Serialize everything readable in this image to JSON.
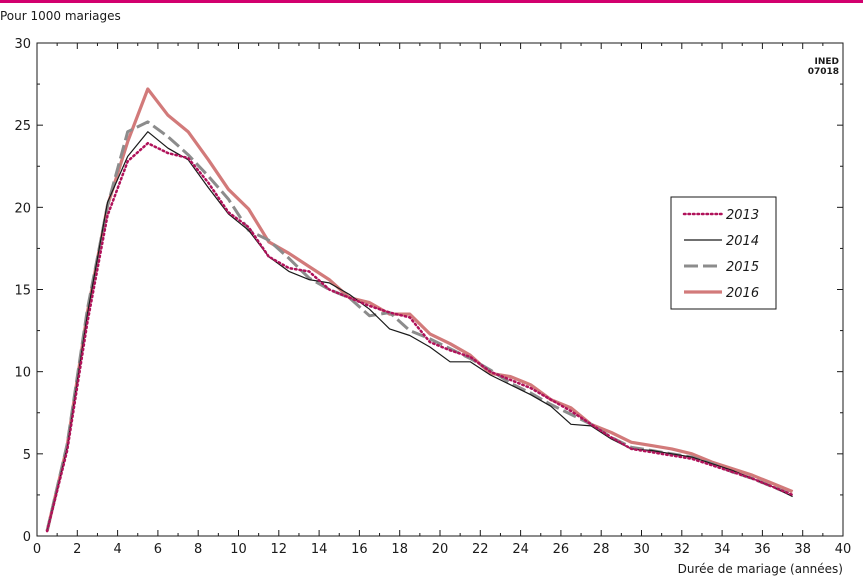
{
  "chart_data": {
    "type": "line",
    "ylabel": "Pour 1000 mariages",
    "xlabel": "Durée de mariage (années)",
    "watermark": [
      "INED",
      "07018"
    ],
    "xlim": [
      0,
      40
    ],
    "ylim": [
      0,
      30
    ],
    "xticks": [
      0,
      2,
      4,
      6,
      8,
      10,
      12,
      14,
      16,
      18,
      20,
      22,
      24,
      26,
      28,
      30,
      32,
      34,
      36,
      38,
      40
    ],
    "yticks": [
      0,
      5,
      10,
      15,
      20,
      25,
      30
    ],
    "grid": false,
    "legend_position": "right",
    "x": [
      0.5,
      1.5,
      2.5,
      3.5,
      4.5,
      5.5,
      6.5,
      7.5,
      8.5,
      9.5,
      10.5,
      11.5,
      12.5,
      13.5,
      14.5,
      15.5,
      16.5,
      17.5,
      18.5,
      19.5,
      20.5,
      21.5,
      22.5,
      23.5,
      24.5,
      25.5,
      26.5,
      27.5,
      28.5,
      29.5,
      30.5,
      31.5,
      32.5,
      33.5,
      34.5,
      35.5,
      36.5,
      37.5
    ],
    "series": [
      {
        "name": "2013",
        "color": "#b0125a",
        "style": "dotted",
        "values": [
          0.3,
          5.2,
          13.0,
          19.5,
          22.8,
          23.9,
          23.3,
          23.0,
          21.5,
          19.7,
          18.8,
          17.0,
          16.3,
          16.1,
          15.0,
          14.5,
          14.0,
          13.6,
          13.3,
          11.8,
          11.3,
          10.9,
          10.0,
          9.5,
          9.0,
          8.3,
          7.6,
          6.8,
          6.0,
          5.3,
          5.1,
          4.9,
          4.7,
          4.3,
          3.9,
          3.5,
          3.0,
          2.5
        ]
      },
      {
        "name": "2014",
        "color": "#1a1a1a",
        "style": "solid",
        "values": [
          0.3,
          5.4,
          13.5,
          20.3,
          23.1,
          24.6,
          23.6,
          22.9,
          21.2,
          19.6,
          18.6,
          17.0,
          16.1,
          15.6,
          15.4,
          14.7,
          13.8,
          12.6,
          12.2,
          11.5,
          10.6,
          10.6,
          9.8,
          9.2,
          8.6,
          7.9,
          6.8,
          6.7,
          5.9,
          5.3,
          5.2,
          5.0,
          4.8,
          4.4,
          4.0,
          3.5,
          3.0,
          2.4
        ]
      },
      {
        "name": "2015",
        "color": "#8c8c8c",
        "style": "dashed",
        "values": [
          0.3,
          5.6,
          13.8,
          20.1,
          24.6,
          25.2,
          24.3,
          23.2,
          21.9,
          20.5,
          18.6,
          18.0,
          16.9,
          15.7,
          15.0,
          14.5,
          13.4,
          13.6,
          12.5,
          12.0,
          11.4,
          10.8,
          10.1,
          9.3,
          8.7,
          8.0,
          7.4,
          6.8,
          6.0,
          5.4,
          5.2,
          5.0,
          4.8,
          4.4,
          3.9,
          3.5,
          3.0,
          2.5
        ]
      },
      {
        "name": "2016",
        "color": "#d27a7a",
        "style": "solid-thick",
        "values": [
          0.3,
          5.5,
          13.6,
          20.1,
          24.0,
          27.2,
          25.6,
          24.6,
          22.9,
          21.1,
          19.9,
          17.9,
          17.2,
          16.4,
          15.6,
          14.5,
          14.2,
          13.5,
          13.5,
          12.3,
          11.7,
          11.0,
          9.9,
          9.7,
          9.2,
          8.3,
          7.8,
          6.8,
          6.3,
          5.7,
          5.5,
          5.3,
          5.0,
          4.5,
          4.1,
          3.7,
          3.2,
          2.7
        ]
      }
    ]
  }
}
